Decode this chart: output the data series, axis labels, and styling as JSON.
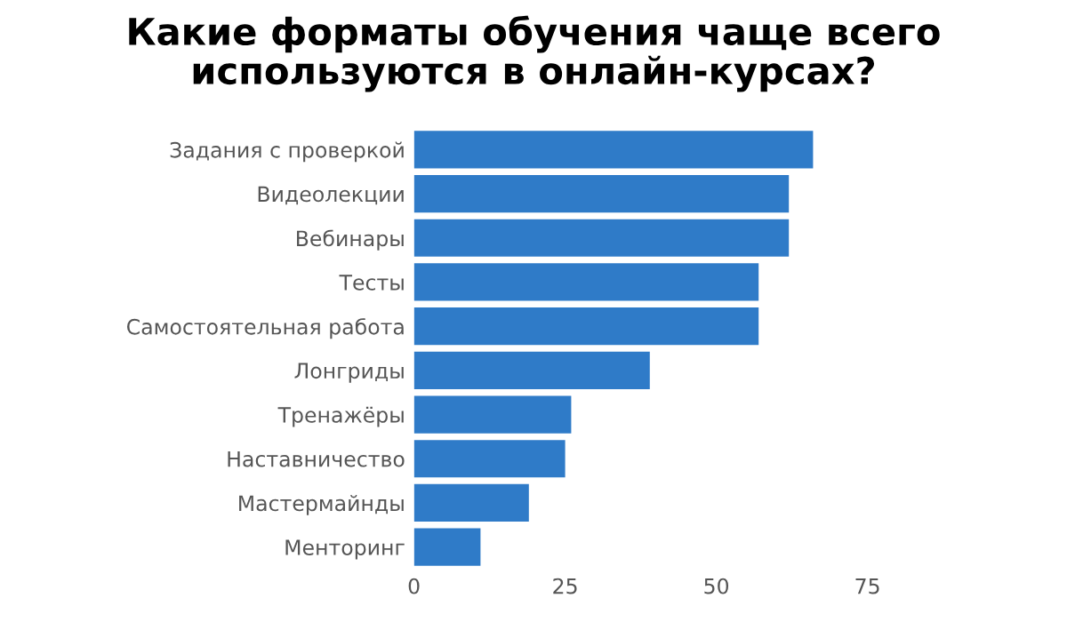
{
  "chart_data": {
    "type": "bar",
    "orientation": "horizontal",
    "title": "Какие форматы обучения чаще всего\nиспользуются в онлайн-курсах?",
    "categories": [
      "Задания с проверкой",
      "Видеолекции",
      "Вебинары",
      "Тесты",
      "Самостоятельная работа",
      "Лонгриды",
      "Тренажёры",
      "Наставничество",
      "Мастермайнды",
      "Менторинг"
    ],
    "values": [
      66,
      62,
      62,
      57,
      57,
      39,
      26,
      25,
      19,
      11
    ],
    "color": "#2f7bc8",
    "xlim": [
      0,
      75
    ],
    "xticks": [
      0,
      25,
      50,
      75
    ],
    "grid": false
  }
}
